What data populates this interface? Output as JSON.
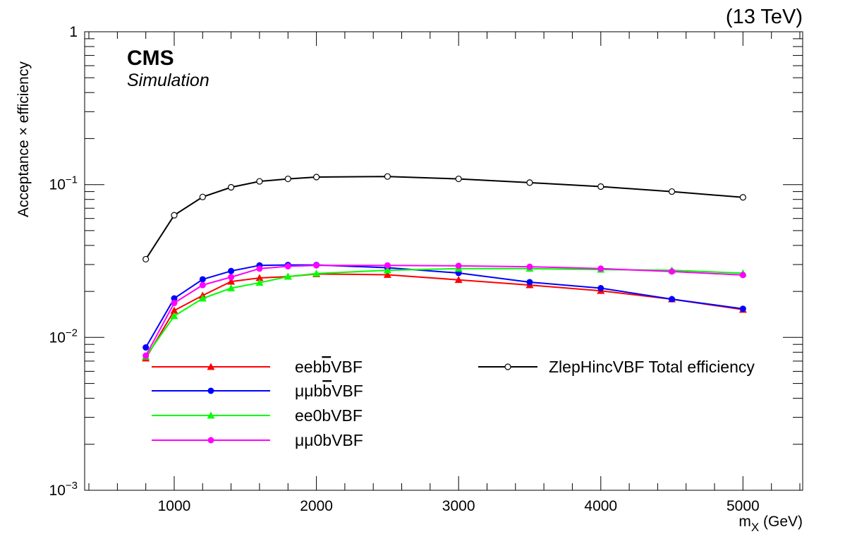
{
  "energy_label": "(13 TeV)",
  "cms_label": "CMS",
  "sim_label": "Simulation",
  "chart_data": {
    "type": "line",
    "title": "",
    "xlabel": "m",
    "xlabel_sub": "X",
    "xlabel_unit": " (GeV)",
    "ylabel": "Acceptance × efficiency",
    "yscale": "log",
    "xlim": [
      370,
      5420
    ],
    "ylim": [
      0.001,
      1
    ],
    "x_ticks": [
      1000,
      2000,
      3000,
      4000,
      5000
    ],
    "x_tick_labels": [
      "1000",
      "2000",
      "3000",
      "4000",
      "5000"
    ],
    "y_ticks": [
      0.001,
      0.01,
      0.1,
      1
    ],
    "y_tick_labels": [
      {
        "base": "10",
        "exp": "−3"
      },
      {
        "base": "10",
        "exp": "−2"
      },
      {
        "base": "10",
        "exp": "−1"
      },
      {
        "base": "1",
        "exp": ""
      }
    ],
    "grid": false,
    "legend": "bottom",
    "x": [
      800,
      1000,
      1200,
      1400,
      1600,
      1800,
      2000,
      2500,
      3000,
      3500,
      4000,
      4500,
      5000
    ],
    "series": [
      {
        "name": "eebb̄VBF",
        "label_parts": [
          "eeb",
          "b",
          "VBF"
        ],
        "color": "#ff0000",
        "marker": "triangle",
        "values": [
          0.0073,
          0.015,
          0.0188,
          0.0232,
          0.0245,
          0.025,
          0.026,
          0.0257,
          0.0238,
          0.022,
          0.0202,
          0.0178,
          0.0152
        ]
      },
      {
        "name": "μμbb̄VBF",
        "label_parts": [
          "μμb",
          "b",
          "VBF"
        ],
        "color": "#0000ff",
        "marker": "circle",
        "values": [
          0.0086,
          0.018,
          0.024,
          0.0272,
          0.0296,
          0.0298,
          0.0298,
          0.0286,
          0.0264,
          0.023,
          0.021,
          0.0178,
          0.0154
        ]
      },
      {
        "name": "ee0bVBF",
        "label_parts": [
          "ee0bVBF"
        ],
        "color": "#00ff00",
        "marker": "triangle",
        "values": [
          0.0075,
          0.0138,
          0.018,
          0.021,
          0.0228,
          0.025,
          0.0262,
          0.0275,
          0.0282,
          0.0282,
          0.0278,
          0.0275,
          0.0263
        ]
      },
      {
        "name": "μμ0bVBF",
        "label_parts": [
          "μμ0bVBF"
        ],
        "color": "#ff00ff",
        "marker": "circle",
        "values": [
          0.0076,
          0.0168,
          0.022,
          0.0248,
          0.0282,
          0.0292,
          0.0296,
          0.0296,
          0.0294,
          0.029,
          0.0282,
          0.027,
          0.0256
        ]
      },
      {
        "name": "ZlepHincVBF Total efficiency",
        "label_parts": [
          "ZlepHincVBF Total efficiency"
        ],
        "color": "#000000",
        "marker": "open-circle",
        "values": [
          0.0325,
          0.063,
          0.083,
          0.096,
          0.105,
          0.109,
          0.112,
          0.113,
          0.109,
          0.103,
          0.097,
          0.09,
          0.0825
        ]
      }
    ]
  }
}
